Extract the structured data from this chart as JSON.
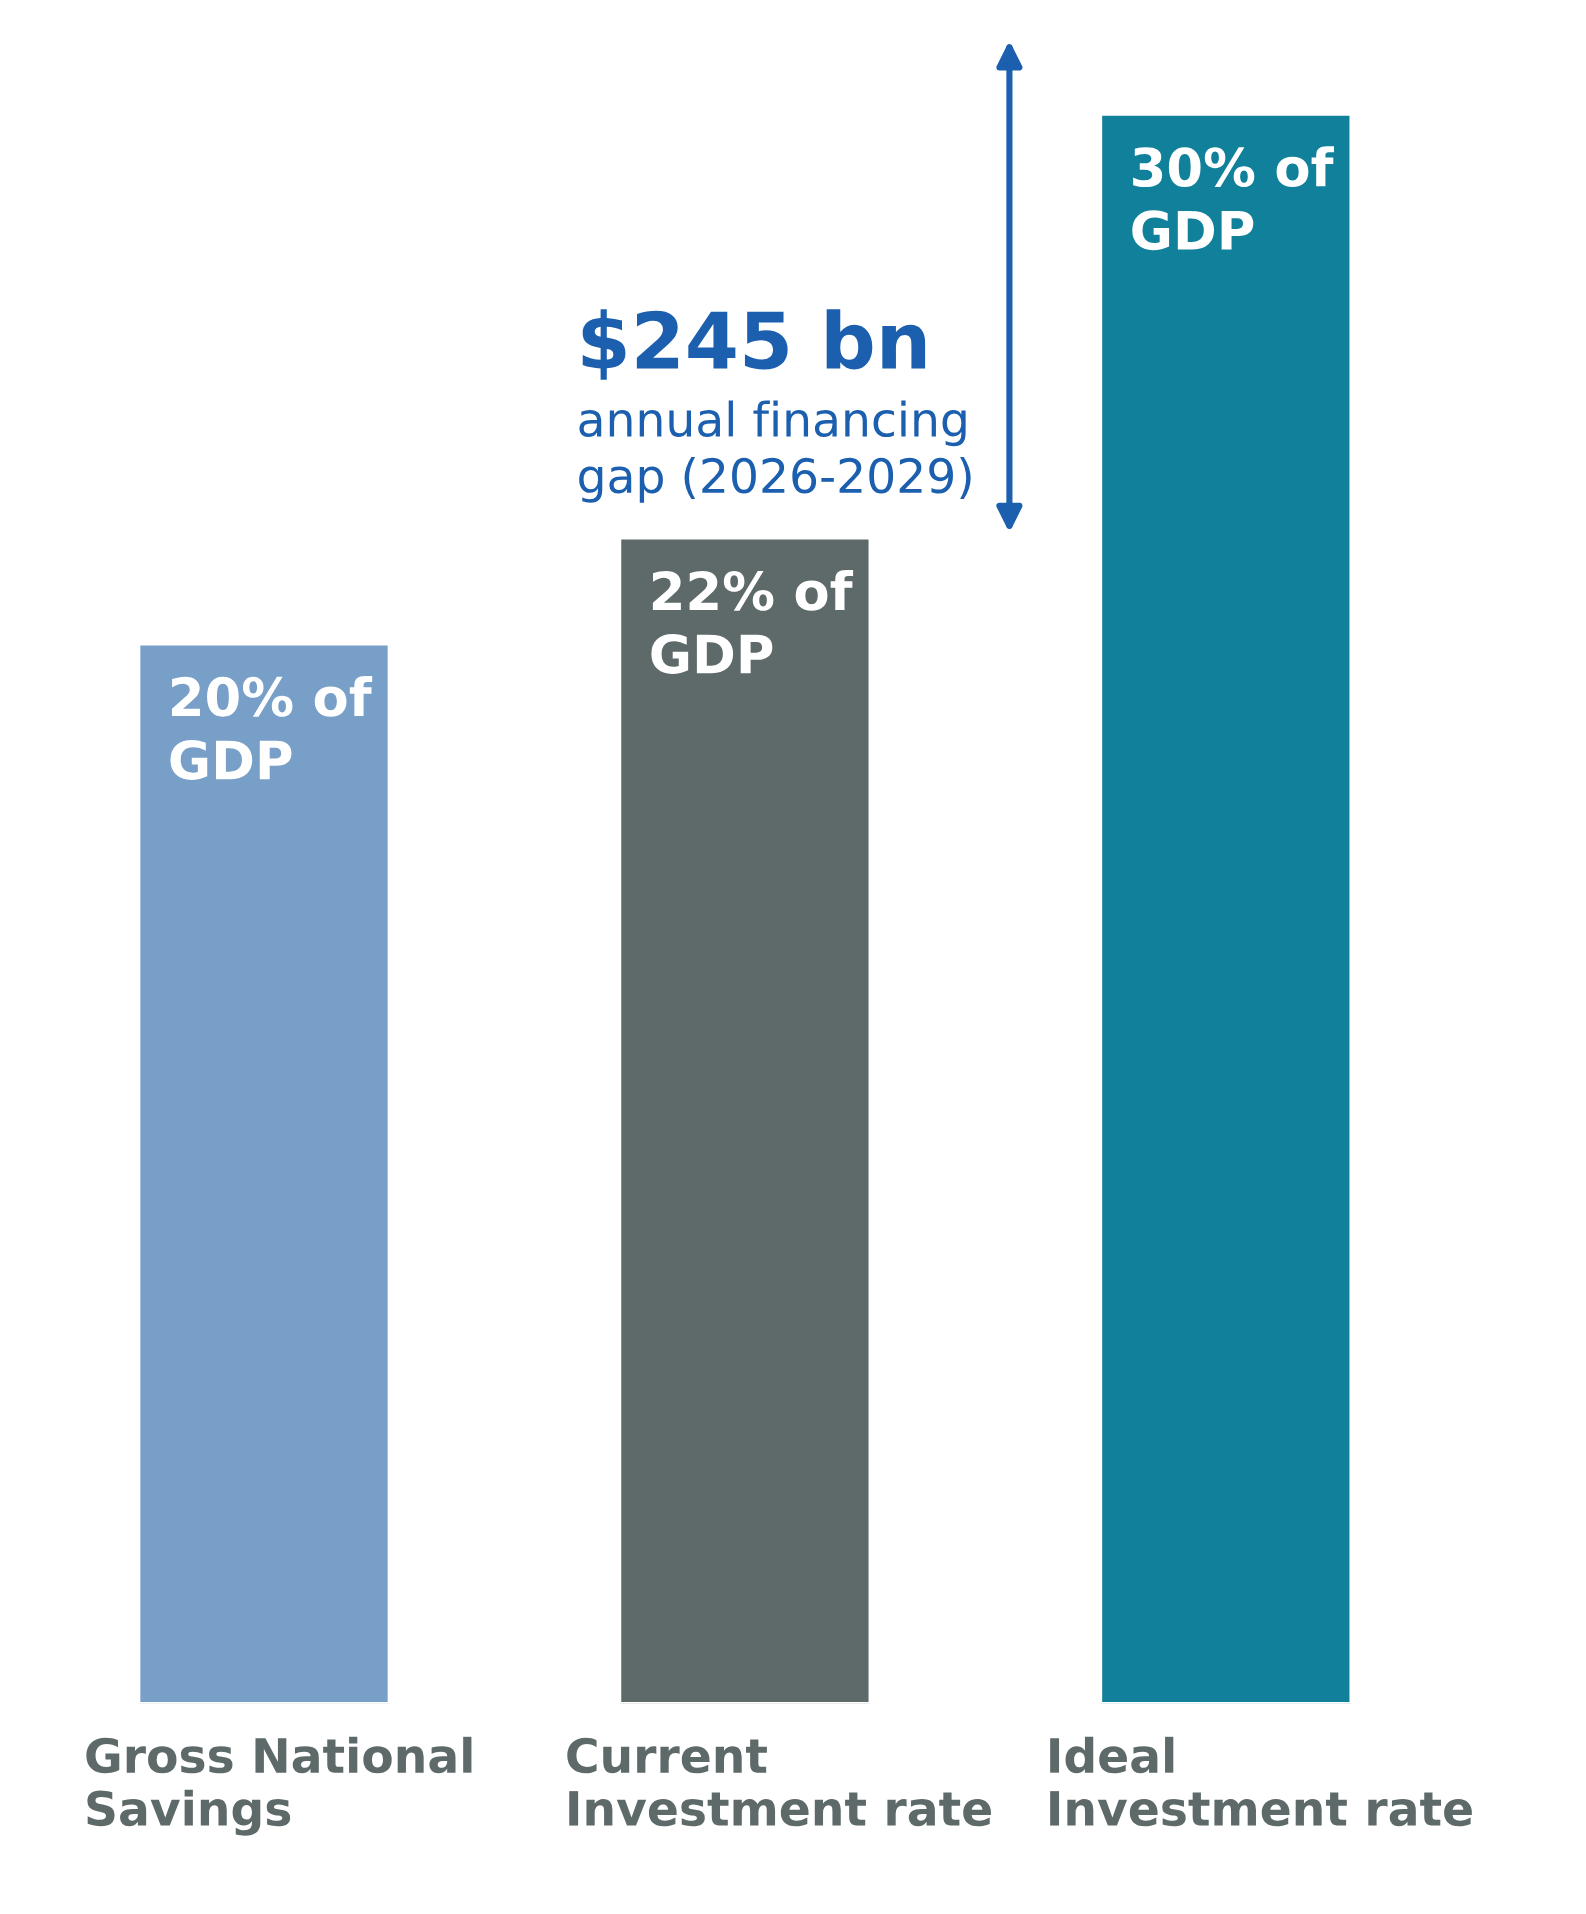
{
  "chart_data": {
    "type": "bar",
    "categories": [
      "Gross National\nSavings",
      "Current\nInvestment rate",
      "Ideal\nInvestment rate"
    ],
    "values": [
      20,
      22,
      30
    ],
    "colors": [
      "#779fc8",
      "#5d6a69",
      "#11809a"
    ],
    "value_labels": [
      "20% of\nGDP",
      "22% of\nGDP",
      "30% of\nGDP"
    ],
    "annotations": [
      "$245 bn",
      "annual financing\ngap (2026-2029)"
    ],
    "grid": false,
    "legend": false
  }
}
